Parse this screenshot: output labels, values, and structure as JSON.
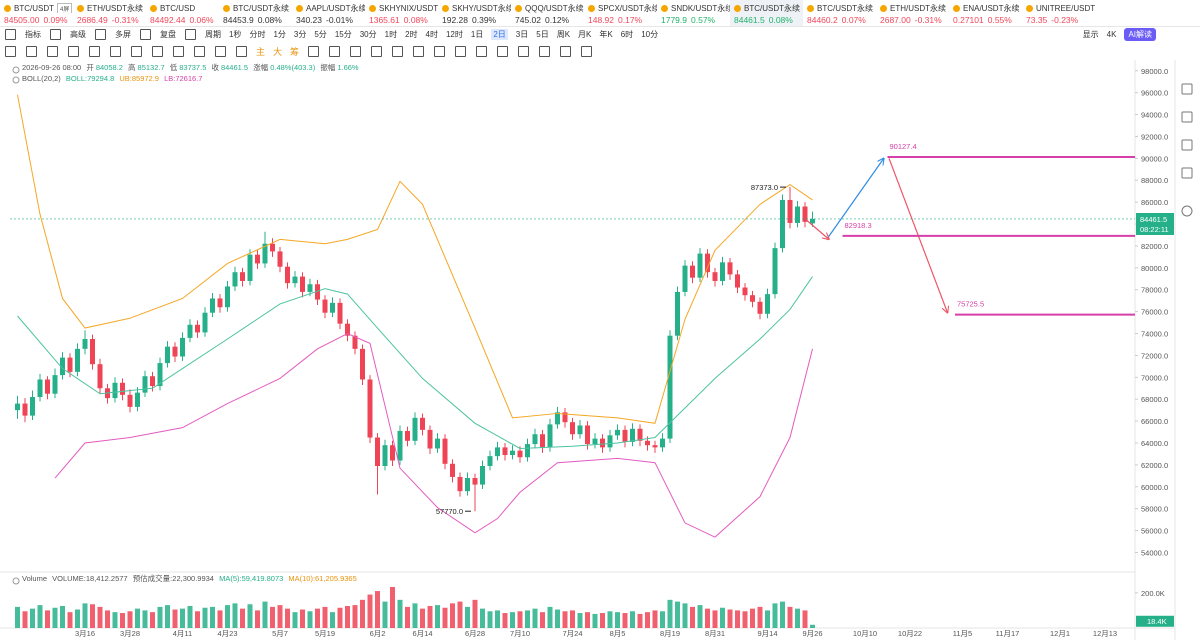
{
  "tabs": [
    {
      "name": "BTC/USDT",
      "price": "84505.00",
      "change": "0.09%",
      "color": "#f0475a",
      "tag": "4屏"
    },
    {
      "name": "ETH/USDT永续",
      "price": "2686.49",
      "change": "-0.31%",
      "color": "#f0475a"
    },
    {
      "name": "BTC/USD",
      "price": "84492.44",
      "change": "0.06%",
      "color": "#f0475a"
    },
    {
      "name": "BTC/USDT永续",
      "price": "84453.9",
      "change": "0.08%",
      "color": "#333333"
    },
    {
      "name": "AAPL/USDT永续",
      "price": "340.23",
      "change": "-0.01%",
      "color": "#333333"
    },
    {
      "name": "SKHYNIX/USDT永续",
      "price": "1365.61",
      "change": "0.08%",
      "color": "#f0475a"
    },
    {
      "name": "SKHY/USDT永续",
      "price": "192.28",
      "change": "0.39%",
      "color": "#333333"
    },
    {
      "name": "QQQ/USDT永续",
      "price": "745.02",
      "change": "0.12%",
      "color": "#333333"
    },
    {
      "name": "SPCX/USDT永续",
      "price": "148.92",
      "change": "0.17%",
      "color": "#f0475a"
    },
    {
      "name": "SNDK/USDT永续",
      "price": "1779.9",
      "change": "0.57%",
      "color": "#20b26c"
    },
    {
      "name": "BTC/USDT永续",
      "price": "84461.5",
      "change": "0.08%",
      "color": "#20b26c",
      "active": true
    },
    {
      "name": "BTC/USDT永续",
      "price": "84460.2",
      "change": "0.07%",
      "color": "#f0475a"
    },
    {
      "name": "ETH/USDT永续",
      "price": "2687.00",
      "change": "-0.31%",
      "color": "#f0475a"
    },
    {
      "name": "ENA/USDT永续",
      "price": "0.27101",
      "change": "0.55%",
      "color": "#f0475a"
    },
    {
      "name": "UNITREE/USDT永续",
      "price": "73.35",
      "change": "-0.23%",
      "color": "#f0475a"
    }
  ],
  "toolbar": {
    "left": [
      "指标",
      "高级",
      "多屏",
      "复盘"
    ],
    "periods_label": "周期",
    "periods": [
      "1秒",
      "分时",
      "1分",
      "3分",
      "5分",
      "15分",
      "30分",
      "1时",
      "2时",
      "4时",
      "12时",
      "1日",
      "2日",
      "3日",
      "5日",
      "周K",
      "月K",
      "年K",
      "6时",
      "10分"
    ],
    "active_period": "2日",
    "display": "显示",
    "resolution": "4K",
    "ai": "AI解读",
    "tools_text": [
      "主",
      "大",
      "筹"
    ]
  },
  "chart_data": {
    "type": "candlestick",
    "info": {
      "time": "2026-09-26 08:00",
      "open_label": "开",
      "high_label": "高",
      "low_label": "低",
      "close_label": "收",
      "change_label": "涨幅",
      "change": "0.48%(403.3)",
      "amp_label": "振幅",
      "amp": "1.66%"
    },
    "boll_info": {
      "name": "BOLL(20,2)",
      "mid": "BOLL:79294.8",
      "upper": "UB:85972.9",
      "lower": "LB:72616.7"
    },
    "volume_info": {
      "name": "Volume",
      "volume": "VOLUME:18,412.2577",
      "estimate": "预估成交量:22,300.9934",
      "ma5": "MA(5):59,419.8073",
      "ma10": "MA(10):61,205.9365"
    },
    "up_color": "#26b08a",
    "down_color": "#ee4455",
    "candles": [
      [
        67000,
        68300,
        66200,
        67600
      ],
      [
        67600,
        68100,
        65900,
        66500
      ],
      [
        66500,
        68800,
        66100,
        68200
      ],
      [
        68200,
        70300,
        67800,
        69800
      ],
      [
        69800,
        70100,
        68000,
        68500
      ],
      [
        68500,
        70800,
        68100,
        70200
      ],
      [
        70200,
        72300,
        69800,
        71800
      ],
      [
        71800,
        72200,
        70000,
        70500
      ],
      [
        70500,
        73100,
        70100,
        72600
      ],
      [
        72600,
        74300,
        72100,
        73500
      ],
      [
        73500,
        73900,
        70700,
        71200
      ],
      [
        71200,
        71700,
        68500,
        69000
      ],
      [
        69000,
        69400,
        67600,
        68100
      ],
      [
        68100,
        70000,
        67700,
        69500
      ],
      [
        69500,
        69900,
        67900,
        68400
      ],
      [
        68400,
        68900,
        66800,
        67300
      ],
      [
        67300,
        69100,
        66900,
        68600
      ],
      [
        68600,
        70600,
        68200,
        70100
      ],
      [
        70100,
        70500,
        68700,
        69200
      ],
      [
        69200,
        71800,
        68800,
        71300
      ],
      [
        71300,
        73300,
        70900,
        72800
      ],
      [
        72800,
        73200,
        71400,
        71900
      ],
      [
        71900,
        74100,
        71500,
        73600
      ],
      [
        73600,
        75300,
        73200,
        74800
      ],
      [
        74800,
        75200,
        73600,
        74100
      ],
      [
        74100,
        76400,
        73700,
        75900
      ],
      [
        75900,
        77700,
        75500,
        77200
      ],
      [
        77200,
        77600,
        75900,
        76400
      ],
      [
        76400,
        78800,
        76000,
        78300
      ],
      [
        78300,
        80100,
        77900,
        79600
      ],
      [
        79600,
        80000,
        78300,
        78800
      ],
      [
        78800,
        81700,
        78400,
        81200
      ],
      [
        81200,
        81600,
        79900,
        80400
      ],
      [
        80400,
        83300,
        80000,
        82200
      ],
      [
        82200,
        82700,
        81000,
        81500
      ],
      [
        81500,
        81900,
        79600,
        80100
      ],
      [
        80100,
        80500,
        78100,
        78600
      ],
      [
        78600,
        79700,
        78200,
        79200
      ],
      [
        79200,
        79600,
        77300,
        77800
      ],
      [
        77800,
        79000,
        77400,
        78500
      ],
      [
        78500,
        78900,
        76600,
        77100
      ],
      [
        77100,
        77500,
        75400,
        75900
      ],
      [
        75900,
        77300,
        75500,
        76800
      ],
      [
        76800,
        77200,
        74400,
        74900
      ],
      [
        74900,
        75300,
        73300,
        73800
      ],
      [
        73800,
        74200,
        72100,
        72600
      ],
      [
        72600,
        73000,
        69300,
        69800
      ],
      [
        69800,
        70200,
        64000,
        64500
      ],
      [
        64500,
        64900,
        59300,
        61900
      ],
      [
        61900,
        64300,
        61500,
        63800
      ],
      [
        63800,
        64200,
        61900,
        62400
      ],
      [
        62400,
        65600,
        62000,
        65100
      ],
      [
        65100,
        65500,
        63700,
        64200
      ],
      [
        64200,
        66800,
        63800,
        66300
      ],
      [
        66300,
        66700,
        64700,
        65200
      ],
      [
        65200,
        65600,
        63000,
        63500
      ],
      [
        63500,
        64900,
        63100,
        64400
      ],
      [
        64400,
        64800,
        61600,
        62100
      ],
      [
        62100,
        62500,
        60400,
        60900
      ],
      [
        60900,
        61300,
        59100,
        59600
      ],
      [
        59600,
        61300,
        59200,
        60800
      ],
      [
        60800,
        61200,
        57770,
        60200
      ],
      [
        60200,
        62400,
        59800,
        61900
      ],
      [
        61900,
        63300,
        61500,
        62800
      ],
      [
        62800,
        64100,
        62400,
        63600
      ],
      [
        63600,
        64000,
        62400,
        62900
      ],
      [
        62900,
        63800,
        62500,
        63300
      ],
      [
        63300,
        63700,
        62200,
        62700
      ],
      [
        62700,
        64400,
        62300,
        63900
      ],
      [
        63900,
        65300,
        63500,
        64800
      ],
      [
        64800,
        65200,
        63100,
        63600
      ],
      [
        63600,
        66200,
        63200,
        65700
      ],
      [
        65700,
        67300,
        65300,
        66800
      ],
      [
        66800,
        67200,
        65400,
        65900
      ],
      [
        65900,
        66300,
        64300,
        64800
      ],
      [
        64800,
        66100,
        64400,
        65600
      ],
      [
        65600,
        66000,
        63400,
        63900
      ],
      [
        63900,
        64900,
        63500,
        64400
      ],
      [
        64400,
        64800,
        63100,
        63600
      ],
      [
        63600,
        65200,
        63200,
        64700
      ],
      [
        64700,
        65700,
        64300,
        65200
      ],
      [
        65200,
        65600,
        63600,
        64100
      ],
      [
        64100,
        65800,
        63700,
        65300
      ],
      [
        65300,
        65700,
        63700,
        64200
      ],
      [
        64200,
        64600,
        63300,
        63800
      ],
      [
        63800,
        64200,
        63100,
        63600
      ],
      [
        63600,
        64900,
        63200,
        64400
      ],
      [
        64400,
        74300,
        64000,
        73800
      ],
      [
        73800,
        78300,
        73400,
        77800
      ],
      [
        77800,
        80700,
        77400,
        80200
      ],
      [
        80200,
        80600,
        78600,
        79100
      ],
      [
        79100,
        81800,
        78700,
        81300
      ],
      [
        81300,
        81700,
        79100,
        79600
      ],
      [
        79600,
        80000,
        78300,
        78800
      ],
      [
        78800,
        81000,
        78400,
        80500
      ],
      [
        80500,
        80900,
        78900,
        79400
      ],
      [
        79400,
        79800,
        77700,
        78200
      ],
      [
        78200,
        78600,
        77000,
        77500
      ],
      [
        77500,
        77900,
        76400,
        76900
      ],
      [
        76900,
        77300,
        75300,
        75800
      ],
      [
        75800,
        78100,
        75400,
        77600
      ],
      [
        77600,
        82300,
        77200,
        81800
      ],
      [
        81800,
        86700,
        81400,
        86200
      ],
      [
        86200,
        87373,
        83600,
        84100
      ],
      [
        84100,
        86100,
        83700,
        85600
      ],
      [
        85600,
        86000,
        83700,
        84200
      ],
      [
        84058.2,
        85132.7,
        83737.5,
        84461.5
      ]
    ],
    "volumes": [
      120000,
      95000,
      110000,
      130000,
      100000,
      115000,
      125000,
      90000,
      105000,
      140000,
      135000,
      120000,
      100000,
      90000,
      85000,
      95000,
      110000,
      100000,
      90000,
      120000,
      130000,
      105000,
      110000,
      125000,
      95000,
      115000,
      120000,
      100000,
      130000,
      140000,
      110000,
      135000,
      100000,
      150000,
      120000,
      130000,
      110000,
      90000,
      105000,
      95000,
      110000,
      120000,
      90000,
      115000,
      125000,
      130000,
      160000,
      190000,
      210000,
      150000,
      233000,
      160000,
      120000,
      140000,
      110000,
      125000,
      130000,
      115000,
      140000,
      150000,
      120000,
      160000,
      110000,
      95000,
      100000,
      85000,
      90000,
      95000,
      100000,
      110000,
      90000,
      120000,
      105000,
      95000,
      100000,
      85000,
      90000,
      80000,
      85000,
      95000,
      90000,
      85000,
      95000,
      80000,
      90000,
      100000,
      95000,
      160000,
      150000,
      140000,
      120000,
      130000,
      110000,
      100000,
      115000,
      105000,
      100000,
      95000,
      110000,
      120000,
      100000,
      140000,
      150000,
      120000,
      110000,
      100000,
      18412.2577
    ],
    "volume_label": "18.4K",
    "boll": {
      "upper": {
        "color": "#f5a623",
        "x": [
          0,
          3,
          6,
          9,
          15,
          22,
          28,
          35,
          41,
          44,
          48,
          51,
          54,
          61,
          66,
          72,
          80,
          85,
          89,
          93,
          99,
          103,
          106
        ],
        "values": [
          95800,
          84900,
          77200,
          74500,
          75400,
          77200,
          80400,
          82600,
          82200,
          82600,
          83500,
          87900,
          85800,
          74500,
          66300,
          66700,
          66300,
          65800,
          75300,
          81600,
          85800,
          87600,
          86200
        ]
      },
      "mid": {
        "color": "#4cc3a0",
        "x": [
          0,
          6,
          11,
          18,
          22,
          28,
          35,
          41,
          44,
          48,
          54,
          61,
          67,
          74,
          80,
          85,
          89,
          93,
          99,
          103,
          106
        ],
        "values": [
          75600,
          70800,
          68500,
          69000,
          70800,
          73500,
          76700,
          78100,
          77600,
          74500,
          69900,
          65800,
          63500,
          63700,
          64000,
          64500,
          67200,
          69900,
          73500,
          76200,
          79200
        ]
      },
      "lower": {
        "color": "#e35bc0",
        "x": [
          5,
          9,
          15,
          22,
          28,
          35,
          40,
          44,
          47,
          51,
          56,
          61,
          64,
          67,
          72,
          80,
          85,
          89,
          93,
          99,
          103,
          106
        ],
        "values": [
          60800,
          64000,
          64500,
          65400,
          67600,
          69900,
          72600,
          74000,
          73100,
          61700,
          58100,
          55800,
          57100,
          59500,
          62200,
          62600,
          62200,
          56700,
          55400,
          59100,
          64500,
          72600
        ]
      }
    },
    "annotations": [
      {
        "label": "87373.0",
        "candle": 103,
        "value": 87373,
        "at": "high"
      },
      {
        "label": "57770.0",
        "candle": 61,
        "value": 57770,
        "at": "low"
      }
    ],
    "drawings": [
      {
        "label": "90127.4",
        "value": 90127.4,
        "start": 116,
        "color": "#d63fa8"
      },
      {
        "label": "82918.3",
        "value": 82918.3,
        "start": 110,
        "color": "#d63fa8"
      },
      {
        "label": "75725.5",
        "value": 75725.5,
        "start": 125,
        "color": "#d63fa8"
      }
    ],
    "arrows": [
      {
        "from": [
          108,
          82700
        ],
        "to": [
          115.5,
          90000
        ],
        "color": "#2f8de4"
      },
      {
        "from": [
          116.2,
          90000
        ],
        "to": [
          124,
          75900
        ],
        "color": "#ee5566"
      },
      {
        "from": [
          105.3,
          84300
        ],
        "to": [
          108.2,
          82600
        ],
        "color": "#ee5566"
      }
    ],
    "countdown": "08:22:11",
    "xlim": [
      -1,
      149
    ],
    "ylim": [
      52400,
      98800
    ],
    "volume_ylim": [
      0,
      250000
    ],
    "yticks": [
      {
        "value": 54000,
        "label": "54000.0"
      },
      {
        "value": 56000,
        "label": "56000.0"
      },
      {
        "value": 58000,
        "label": "58000.0"
      },
      {
        "value": 60000,
        "label": "60000.0"
      },
      {
        "value": 62000,
        "label": "62000.0"
      },
      {
        "value": 64000,
        "label": "64000.0"
      },
      {
        "value": 66000,
        "label": "66000.0"
      },
      {
        "value": 68000,
        "label": "68000.0"
      },
      {
        "value": 70000,
        "label": "70000.0"
      },
      {
        "value": 72000,
        "label": "72000.0"
      },
      {
        "value": 74000,
        "label": "74000.0"
      },
      {
        "value": 76000,
        "label": "76000.0"
      },
      {
        "value": 78000,
        "label": "78000.0"
      },
      {
        "value": 80000,
        "label": "80000.0"
      },
      {
        "value": 82000,
        "label": "82000.0"
      },
      {
        "value": 84000,
        "label": "84000.0"
      },
      {
        "value": 86000,
        "label": "86000.0"
      },
      {
        "value": 88000,
        "label": "88000.0"
      },
      {
        "value": 90000,
        "label": "90000.0"
      },
      {
        "value": 92000,
        "label": "92000.0"
      },
      {
        "value": 94000,
        "label": "94000.0"
      },
      {
        "value": 96000,
        "label": "96000.0"
      },
      {
        "value": 98000,
        "label": "98000.0"
      }
    ],
    "volume_yticks": [
      {
        "value": 200000,
        "label": "200.0K"
      }
    ],
    "xticks": [
      {
        "value": 9,
        "label": "3月16"
      },
      {
        "value": 15,
        "label": "3月28"
      },
      {
        "value": 22,
        "label": "4月11"
      },
      {
        "value": 28,
        "label": "4月23"
      },
      {
        "value": 35,
        "label": "5月7"
      },
      {
        "value": 41,
        "label": "5月19"
      },
      {
        "value": 48,
        "label": "6月2"
      },
      {
        "value": 54,
        "label": "6月14"
      },
      {
        "value": 61,
        "label": "6月28"
      },
      {
        "value": 67,
        "label": "7月10"
      },
      {
        "value": 74,
        "label": "7月24"
      },
      {
        "value": 80,
        "label": "8月5"
      },
      {
        "value": 87,
        "label": "8月19"
      },
      {
        "value": 93,
        "label": "8月31"
      },
      {
        "value": 100,
        "label": "9月14"
      },
      {
        "value": 106,
        "label": "9月26"
      },
      {
        "value": 113,
        "label": "10月10"
      },
      {
        "value": 119,
        "label": "10月22"
      },
      {
        "value": 126,
        "label": "11月5"
      },
      {
        "value": 132,
        "label": "11月17"
      },
      {
        "value": 139,
        "label": "12月1"
      },
      {
        "value": 145,
        "label": "12月13"
      }
    ],
    "grid": false
  }
}
